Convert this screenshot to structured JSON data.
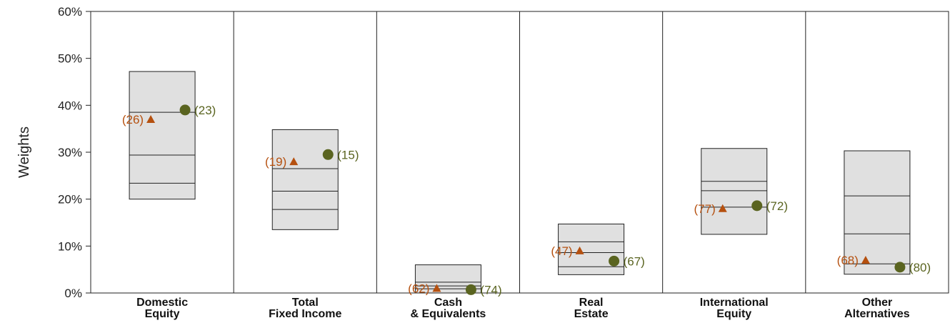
{
  "chart_data": {
    "type": "box",
    "ylabel": "Weights",
    "ylim": [
      0,
      60
    ],
    "yticks": [
      "0%",
      "10%",
      "20%",
      "30%",
      "40%",
      "50%",
      "60%"
    ],
    "categories": [
      [
        "Domestic",
        "Equity"
      ],
      [
        "Total",
        "Fixed Income"
      ],
      [
        "Cash",
        "& Equivalents"
      ],
      [
        "Real",
        "Estate"
      ],
      [
        "International",
        "Equity"
      ],
      [
        "Other",
        "Alternatives"
      ]
    ],
    "ranges": [
      {
        "high": 47.2,
        "q75": 38.5,
        "median": 29.4,
        "q25": 23.4,
        "low": 20.0
      },
      {
        "high": 34.8,
        "q75": 26.5,
        "median": 21.7,
        "q25": 17.8,
        "low": 13.5
      },
      {
        "high": 6.0,
        "q75": 2.3,
        "median": 1.5,
        "q25": 0.9,
        "low": 0.0
      },
      {
        "high": 14.7,
        "q75": 10.9,
        "median": 8.6,
        "q25": 5.6,
        "low": 3.9
      },
      {
        "high": 30.8,
        "q75": 23.8,
        "median": 21.8,
        "q25": 18.3,
        "low": 12.5
      },
      {
        "high": 30.3,
        "q75": 20.7,
        "median": 12.6,
        "q25": 6.2,
        "low": 4.0
      }
    ],
    "series": [
      {
        "marker": "triangle",
        "color": "#b5500f",
        "values": [
          37.0,
          28.0,
          1.0,
          9.0,
          18.0,
          7.0
        ],
        "labels": [
          "(26)",
          "(19)",
          "(62)",
          "(47)",
          "(77)",
          "(68)"
        ]
      },
      {
        "marker": "circle",
        "color": "#5a6420",
        "values": [
          39.0,
          29.5,
          0.7,
          6.8,
          18.6,
          5.5
        ],
        "labels": [
          "(23)",
          "(15)",
          "(74)",
          "(67)",
          "(72)",
          "(80)"
        ]
      }
    ],
    "grid": false
  }
}
